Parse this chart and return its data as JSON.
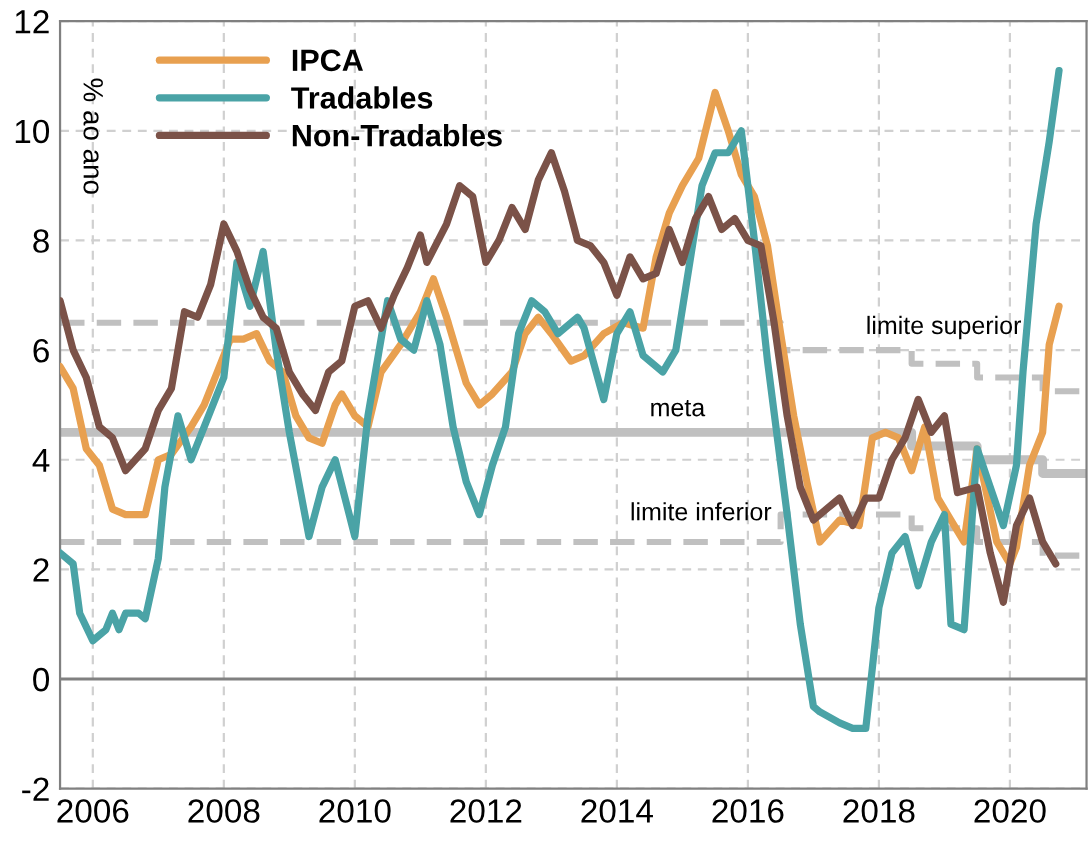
{
  "chart_data": {
    "type": "line",
    "ylabel": "% ao ano",
    "xlim": [
      2006,
      2021.67
    ],
    "ylim": [
      -2,
      12
    ],
    "yticks": [
      -2,
      0,
      2,
      4,
      6,
      8,
      10,
      12
    ],
    "xticks": [
      {
        "value": 2006.5,
        "label": "2006"
      },
      {
        "value": 2008.5,
        "label": "2008"
      },
      {
        "value": 2010.5,
        "label": "2010"
      },
      {
        "value": 2012.5,
        "label": "2012"
      },
      {
        "value": 2014.5,
        "label": "2014"
      },
      {
        "value": 2016.5,
        "label": "2016"
      },
      {
        "value": 2018.5,
        "label": "2018"
      },
      {
        "value": 2020.5,
        "label": "2020"
      }
    ],
    "grid": true,
    "legend": "top left",
    "series": [
      {
        "name": "IPCA",
        "color": "#e8a050",
        "x": [
          2006.0,
          2006.2,
          2006.4,
          2006.6,
          2006.8,
          2007.0,
          2007.3,
          2007.5,
          2007.7,
          2008.0,
          2008.2,
          2008.4,
          2008.6,
          2008.8,
          2009.0,
          2009.2,
          2009.4,
          2009.6,
          2009.8,
          2010.0,
          2010.2,
          2010.3,
          2010.5,
          2010.7,
          2010.9,
          2011.2,
          2011.5,
          2011.7,
          2011.9,
          2012.2,
          2012.4,
          2012.6,
          2012.9,
          2013.1,
          2013.3,
          2013.5,
          2013.8,
          2014.0,
          2014.3,
          2014.6,
          2014.9,
          2015.1,
          2015.3,
          2015.5,
          2015.75,
          2016.0,
          2016.2,
          2016.4,
          2016.6,
          2016.8,
          2017.0,
          2017.2,
          2017.4,
          2017.6,
          2017.9,
          2018.2,
          2018.4,
          2018.6,
          2018.8,
          2019.0,
          2019.2,
          2019.4,
          2019.6,
          2019.8,
          2020.0,
          2020.3,
          2020.5,
          2020.6,
          2020.8,
          2021.0,
          2021.1,
          2021.25
        ],
        "values": [
          5.7,
          5.3,
          4.2,
          3.9,
          3.1,
          3.0,
          3.0,
          4.0,
          4.1,
          4.6,
          5.0,
          5.6,
          6.2,
          6.2,
          6.3,
          5.8,
          5.6,
          4.8,
          4.4,
          4.3,
          5.0,
          5.2,
          4.8,
          4.6,
          5.6,
          6.1,
          6.7,
          7.3,
          6.6,
          5.4,
          5.0,
          5.2,
          5.6,
          6.3,
          6.6,
          6.3,
          5.8,
          5.9,
          6.3,
          6.5,
          6.4,
          7.7,
          8.5,
          9.0,
          9.5,
          10.7,
          10.0,
          9.2,
          8.8,
          7.9,
          6.3,
          4.8,
          3.6,
          2.5,
          2.9,
          2.8,
          4.4,
          4.5,
          4.4,
          3.8,
          4.6,
          3.3,
          2.9,
          2.5,
          4.2,
          2.5,
          2.1,
          2.4,
          3.9,
          4.5,
          6.1,
          6.8
        ]
      },
      {
        "name": "Tradables",
        "color": "#4aa3a6",
        "x": [
          2006.0,
          2006.2,
          2006.3,
          2006.5,
          2006.7,
          2006.8,
          2006.9,
          2007.0,
          2007.2,
          2007.3,
          2007.5,
          2007.6,
          2007.8,
          2008.0,
          2008.2,
          2008.5,
          2008.7,
          2008.9,
          2009.1,
          2009.3,
          2009.5,
          2009.8,
          2010.0,
          2010.2,
          2010.5,
          2010.7,
          2011.0,
          2011.2,
          2011.4,
          2011.6,
          2011.8,
          2012.0,
          2012.2,
          2012.4,
          2012.6,
          2012.8,
          2013.0,
          2013.2,
          2013.4,
          2013.6,
          2013.9,
          2014.0,
          2014.3,
          2014.5,
          2014.7,
          2014.9,
          2015.2,
          2015.4,
          2015.6,
          2015.8,
          2016.0,
          2016.2,
          2016.4,
          2016.6,
          2016.8,
          2017.1,
          2017.3,
          2017.5,
          2017.6,
          2017.9,
          2018.1,
          2018.3,
          2018.5,
          2018.7,
          2018.9,
          2019.1,
          2019.3,
          2019.5,
          2019.6,
          2019.8,
          2020.0,
          2020.2,
          2020.4,
          2020.6,
          2020.7,
          2020.9,
          2021.1,
          2021.25
        ],
        "values": [
          2.3,
          2.1,
          1.2,
          0.7,
          0.9,
          1.2,
          0.9,
          1.2,
          1.2,
          1.1,
          2.2,
          3.5,
          4.8,
          4.0,
          4.6,
          5.5,
          7.6,
          6.8,
          7.8,
          6.0,
          4.5,
          2.6,
          3.5,
          4.0,
          2.6,
          4.8,
          6.9,
          6.2,
          6.0,
          6.9,
          6.1,
          4.6,
          3.6,
          3.0,
          3.9,
          4.6,
          6.3,
          6.9,
          6.7,
          6.3,
          6.6,
          6.4,
          5.1,
          6.3,
          6.7,
          5.9,
          5.6,
          6.0,
          7.5,
          9.0,
          9.6,
          9.6,
          10.0,
          8.0,
          5.8,
          3.0,
          1.0,
          -0.5,
          -0.6,
          -0.8,
          -0.9,
          -0.9,
          1.3,
          2.3,
          2.6,
          1.7,
          2.5,
          3.0,
          1.0,
          0.9,
          4.2,
          3.5,
          2.8,
          3.9,
          5.6,
          8.3,
          9.8,
          11.1
        ]
      },
      {
        "name": "Non-Tradables",
        "color": "#7b5248",
        "x": [
          2006.0,
          2006.2,
          2006.4,
          2006.6,
          2006.8,
          2007.0,
          2007.3,
          2007.5,
          2007.7,
          2007.9,
          2008.1,
          2008.3,
          2008.5,
          2008.7,
          2008.9,
          2009.1,
          2009.3,
          2009.5,
          2009.7,
          2009.9,
          2010.1,
          2010.3,
          2010.5,
          2010.7,
          2010.9,
          2011.1,
          2011.3,
          2011.5,
          2011.6,
          2011.9,
          2012.1,
          2012.3,
          2012.5,
          2012.7,
          2012.9,
          2013.1,
          2013.3,
          2013.5,
          2013.7,
          2013.9,
          2014.1,
          2014.3,
          2014.5,
          2014.7,
          2014.9,
          2015.1,
          2015.3,
          2015.5,
          2015.7,
          2015.9,
          2016.1,
          2016.3,
          2016.5,
          2016.7,
          2016.9,
          2017.1,
          2017.3,
          2017.5,
          2017.7,
          2017.9,
          2018.1,
          2018.3,
          2018.5,
          2018.7,
          2018.9,
          2019.1,
          2019.3,
          2019.5,
          2019.7,
          2020.0,
          2020.2,
          2020.4,
          2020.6,
          2020.8,
          2021.0,
          2021.2
        ],
        "values": [
          6.9,
          6.0,
          5.5,
          4.6,
          4.4,
          3.8,
          4.2,
          4.9,
          5.3,
          6.7,
          6.6,
          7.2,
          8.3,
          7.8,
          7.1,
          6.6,
          6.4,
          5.6,
          5.2,
          4.9,
          5.6,
          5.8,
          6.8,
          6.9,
          6.4,
          7.0,
          7.5,
          8.1,
          7.6,
          8.3,
          9.0,
          8.8,
          7.6,
          8.0,
          8.6,
          8.2,
          9.1,
          9.6,
          8.9,
          8.0,
          7.9,
          7.6,
          7.0,
          7.7,
          7.3,
          7.4,
          8.2,
          7.6,
          8.4,
          8.8,
          8.2,
          8.4,
          8.0,
          7.9,
          6.5,
          4.8,
          3.5,
          2.9,
          3.1,
          3.3,
          2.8,
          3.3,
          3.3,
          4.0,
          4.4,
          5.1,
          4.5,
          4.8,
          3.4,
          3.5,
          2.3,
          1.4,
          2.8,
          3.3,
          2.5,
          2.1
        ]
      },
      {
        "type": "step",
        "name": "limite superior",
        "color": "#c0c0c0",
        "line_style": "dashed",
        "x": [
          2006,
          2017,
          2019,
          2020,
          2021,
          2021.67
        ],
        "values": [
          6.5,
          6.0,
          5.75,
          5.5,
          5.25,
          5.25
        ]
      },
      {
        "type": "step",
        "name": "meta",
        "color": "#c0c0c0",
        "line_style": "solid",
        "x": [
          2006,
          2019,
          2020,
          2021,
          2021.67
        ],
        "values": [
          4.5,
          4.25,
          4.0,
          3.75,
          3.75
        ]
      },
      {
        "type": "step",
        "name": "limite inferior",
        "color": "#c0c0c0",
        "line_style": "dashed",
        "x": [
          2006,
          2017,
          2019,
          2020,
          2021,
          2021.67
        ],
        "values": [
          2.5,
          3.0,
          2.75,
          2.5,
          2.25,
          2.25
        ]
      }
    ],
    "ref_lines": [
      {
        "axis": "y",
        "value": 0,
        "color": "#808080"
      }
    ]
  }
}
